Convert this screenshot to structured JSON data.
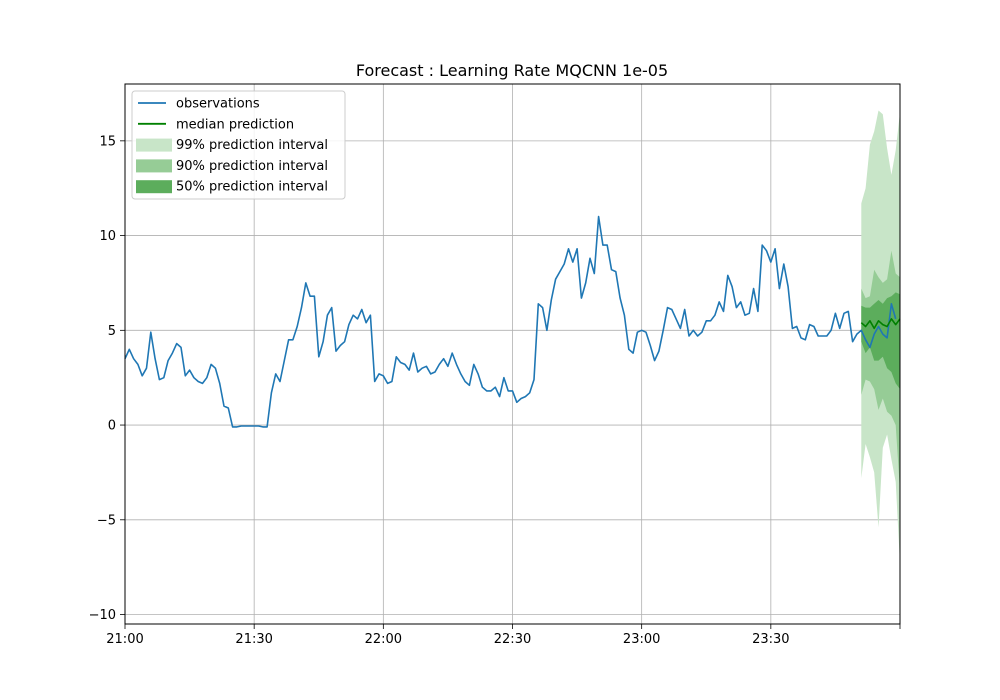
{
  "chart_data": {
    "type": "line",
    "title": "Forecast : Learning Rate MQCNN 1e-05",
    "xlabel": "",
    "ylabel": "",
    "x_unit": "time (HH:MM, 1-minute steps starting 21:00)",
    "xlim": [
      "21:00",
      "00:00"
    ],
    "ylim": [
      -10.5,
      18
    ],
    "x_ticks": [
      "21:00",
      "21:30",
      "22:00",
      "22:30",
      "23:00",
      "23:30",
      ""
    ],
    "y_ticks": [
      -10,
      -5,
      0,
      5,
      10,
      15
    ],
    "grid": true,
    "legend_position": "top-left",
    "legend": [
      {
        "label": "observations",
        "kind": "line",
        "color": "#1f77b4"
      },
      {
        "label": "median prediction",
        "kind": "line",
        "color": "#008000"
      },
      {
        "label": "99% prediction interval",
        "kind": "band",
        "color": "#c8e5c8"
      },
      {
        "label": "90% prediction interval",
        "kind": "band",
        "color": "#96cc96"
      },
      {
        "label": "50% prediction interval",
        "kind": "band",
        "color": "#5cad5c"
      }
    ],
    "series": [
      {
        "name": "observations",
        "color": "#1f77b4",
        "x_start": "21:00",
        "step_minutes": 1,
        "values": [
          3.5,
          4.0,
          3.5,
          3.2,
          2.6,
          3.0,
          4.9,
          3.5,
          2.4,
          2.5,
          3.4,
          3.8,
          4.3,
          4.1,
          2.6,
          2.9,
          2.5,
          2.3,
          2.2,
          2.5,
          3.2,
          3.0,
          2.2,
          1.0,
          0.9,
          -0.1,
          -0.1,
          -0.05,
          -0.05,
          -0.05,
          -0.05,
          -0.05,
          -0.1,
          -0.1,
          1.7,
          2.7,
          2.3,
          3.4,
          4.5,
          4.5,
          5.2,
          6.2,
          7.5,
          6.8,
          6.8,
          3.6,
          4.4,
          5.8,
          6.2,
          3.9,
          4.2,
          4.4,
          5.3,
          5.8,
          5.6,
          6.1,
          5.4,
          5.8,
          2.3,
          2.7,
          2.6,
          2.2,
          2.3,
          3.6,
          3.3,
          3.2,
          2.9,
          3.8,
          2.8,
          3.0,
          3.1,
          2.7,
          2.8,
          3.2,
          3.5,
          3.1,
          3.8,
          3.2,
          2.7,
          2.3,
          2.1,
          3.2,
          2.7,
          2.0,
          1.8,
          1.8,
          2.0,
          1.5,
          2.5,
          1.8,
          1.8,
          1.2,
          1.4,
          1.5,
          1.7,
          2.4,
          6.4,
          6.2,
          5.0,
          6.6,
          7.7,
          8.1,
          8.5,
          9.3,
          8.6,
          9.3,
          6.7,
          7.5,
          8.8,
          8.0,
          11.0,
          9.5,
          9.5,
          8.2,
          8.1,
          6.7,
          5.8,
          4.0,
          3.8,
          4.9,
          5.0,
          4.9,
          4.2,
          3.4,
          3.9,
          5.0,
          6.2,
          6.1,
          5.6,
          5.1,
          6.1,
          4.7,
          5.0,
          4.7,
          4.9,
          5.5,
          5.5,
          5.8,
          6.5,
          6.0,
          7.9,
          7.3,
          6.2,
          6.5,
          5.8,
          5.9,
          7.2,
          6.0,
          9.5,
          9.2,
          8.6,
          9.3,
          7.2,
          8.5,
          7.3,
          5.1,
          5.2,
          4.6,
          4.5,
          5.3,
          5.2,
          4.7,
          4.7,
          4.7,
          5.0,
          5.9,
          5.1,
          5.9,
          6.0,
          4.4,
          4.8,
          5.0,
          4.5,
          4.1,
          4.8,
          5.2,
          4.8,
          4.6,
          6.4,
          5.6
        ]
      },
      {
        "name": "median prediction",
        "color": "#008000",
        "x": [
          "23:51",
          "23:52",
          "23:53",
          "23:54",
          "23:55",
          "23:56",
          "23:57",
          "23:58",
          "23:59",
          "00:00"
        ],
        "values": [
          5.4,
          5.2,
          5.5,
          5.1,
          5.5,
          5.3,
          5.2,
          5.6,
          5.3,
          5.6
        ]
      }
    ],
    "intervals": [
      {
        "name": "99% prediction interval",
        "color": "#c8e5c8",
        "x": [
          "23:51",
          "23:52",
          "23:53",
          "23:54",
          "23:55",
          "23:56",
          "23:57",
          "23:58",
          "23:59",
          "00:00"
        ],
        "lower": [
          -2.8,
          -1.0,
          -1.7,
          -2.5,
          -5.4,
          -1.2,
          -0.5,
          -1.8,
          -3.0,
          -7.3
        ],
        "upper": [
          11.7,
          12.5,
          14.8,
          15.5,
          16.6,
          16.4,
          14.6,
          13.2,
          14.5,
          16.5
        ]
      },
      {
        "name": "90% prediction interval",
        "color": "#96cc96",
        "x": [
          "23:51",
          "23:52",
          "23:53",
          "23:54",
          "23:55",
          "23:56",
          "23:57",
          "23:58",
          "23:59",
          "00:00"
        ],
        "lower": [
          1.6,
          2.4,
          2.3,
          1.9,
          0.8,
          1.4,
          0.7,
          0.5,
          0.0,
          -3.5
        ],
        "upper": [
          7.2,
          6.7,
          6.8,
          8.2,
          7.8,
          7.5,
          7.7,
          9.2,
          8.0,
          7.8
        ]
      },
      {
        "name": "50% prediction interval",
        "color": "#5cad5c",
        "x": [
          "23:51",
          "23:52",
          "23:53",
          "23:54",
          "23:55",
          "23:56",
          "23:57",
          "23:58",
          "23:59",
          "00:00"
        ],
        "lower": [
          4.4,
          3.8,
          4.1,
          3.4,
          3.4,
          3.6,
          3.0,
          2.8,
          2.2,
          1.9
        ],
        "upper": [
          6.3,
          6.2,
          6.2,
          6.4,
          6.6,
          6.4,
          6.7,
          6.8,
          7.0,
          6.9
        ]
      }
    ]
  }
}
